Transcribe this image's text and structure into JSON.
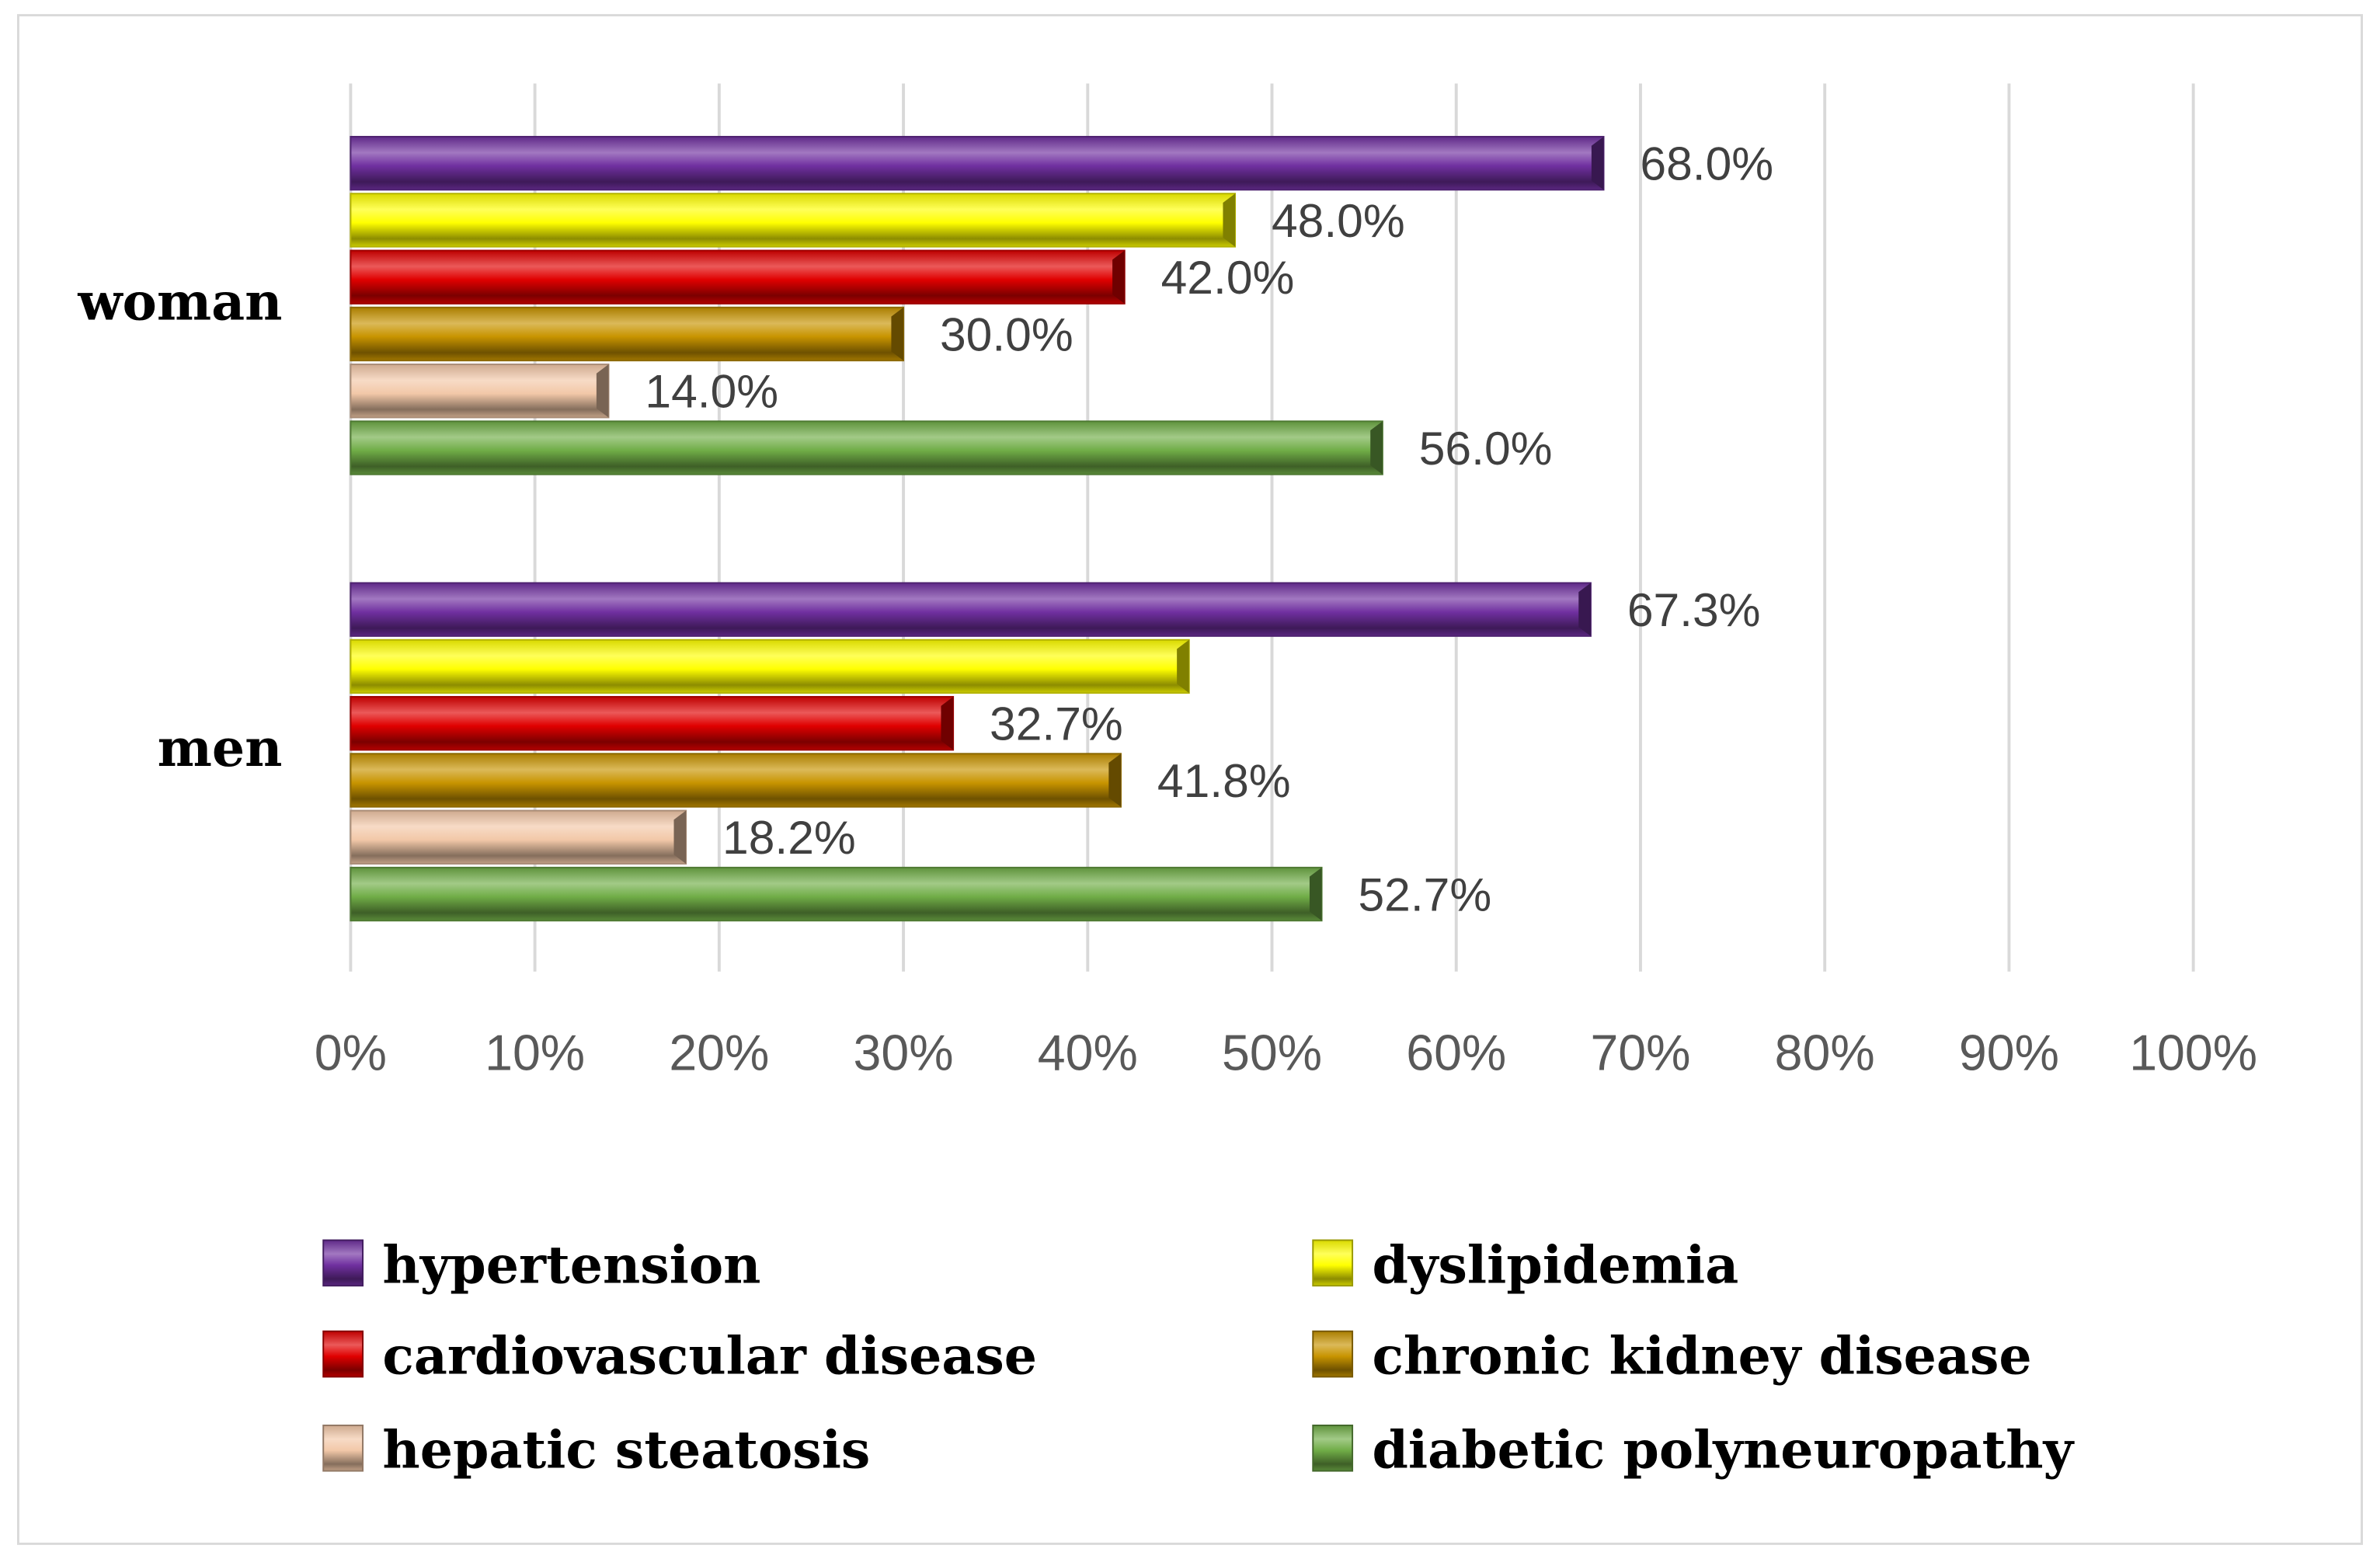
{
  "chart_data": {
    "type": "bar",
    "orientation": "horizontal",
    "title": "",
    "xlabel": "",
    "ylabel": "",
    "xlim": [
      0,
      100
    ],
    "x_ticks": [
      "0%",
      "10%",
      "20%",
      "30%",
      "40%",
      "50%",
      "60%",
      "70%",
      "80%",
      "90%",
      "100%"
    ],
    "grid": true,
    "legend_placement": "bottom",
    "categories": [
      "woman",
      "men"
    ],
    "series": [
      {
        "name": "hypertension",
        "color": "#7030A0",
        "values": [
          68.0,
          67.3
        ],
        "labels": [
          "68.0%",
          "67.3%"
        ]
      },
      {
        "name": "dyslipidemia",
        "color": "#FFFF00",
        "values": [
          48.0,
          45.5
        ],
        "labels": [
          "48.0%",
          null
        ]
      },
      {
        "name": "cardiovascular disease",
        "color": "#E00000",
        "values": [
          42.0,
          32.7
        ],
        "labels": [
          "42.0%",
          "32.7%"
        ]
      },
      {
        "name": "chronic kidney disease",
        "color": "#C89400",
        "values": [
          30.0,
          41.8
        ],
        "labels": [
          "30.0%",
          "41.8%"
        ]
      },
      {
        "name": "hepatic steatosis",
        "color": "#F2C8A8",
        "values": [
          14.0,
          18.2
        ],
        "labels": [
          "14.0%",
          "18.2%"
        ]
      },
      {
        "name": "diabetic polyneuropathy",
        "color": "#70AD47",
        "values": [
          56.0,
          52.7
        ],
        "labels": [
          "56.0%",
          "52.7%"
        ]
      }
    ]
  }
}
